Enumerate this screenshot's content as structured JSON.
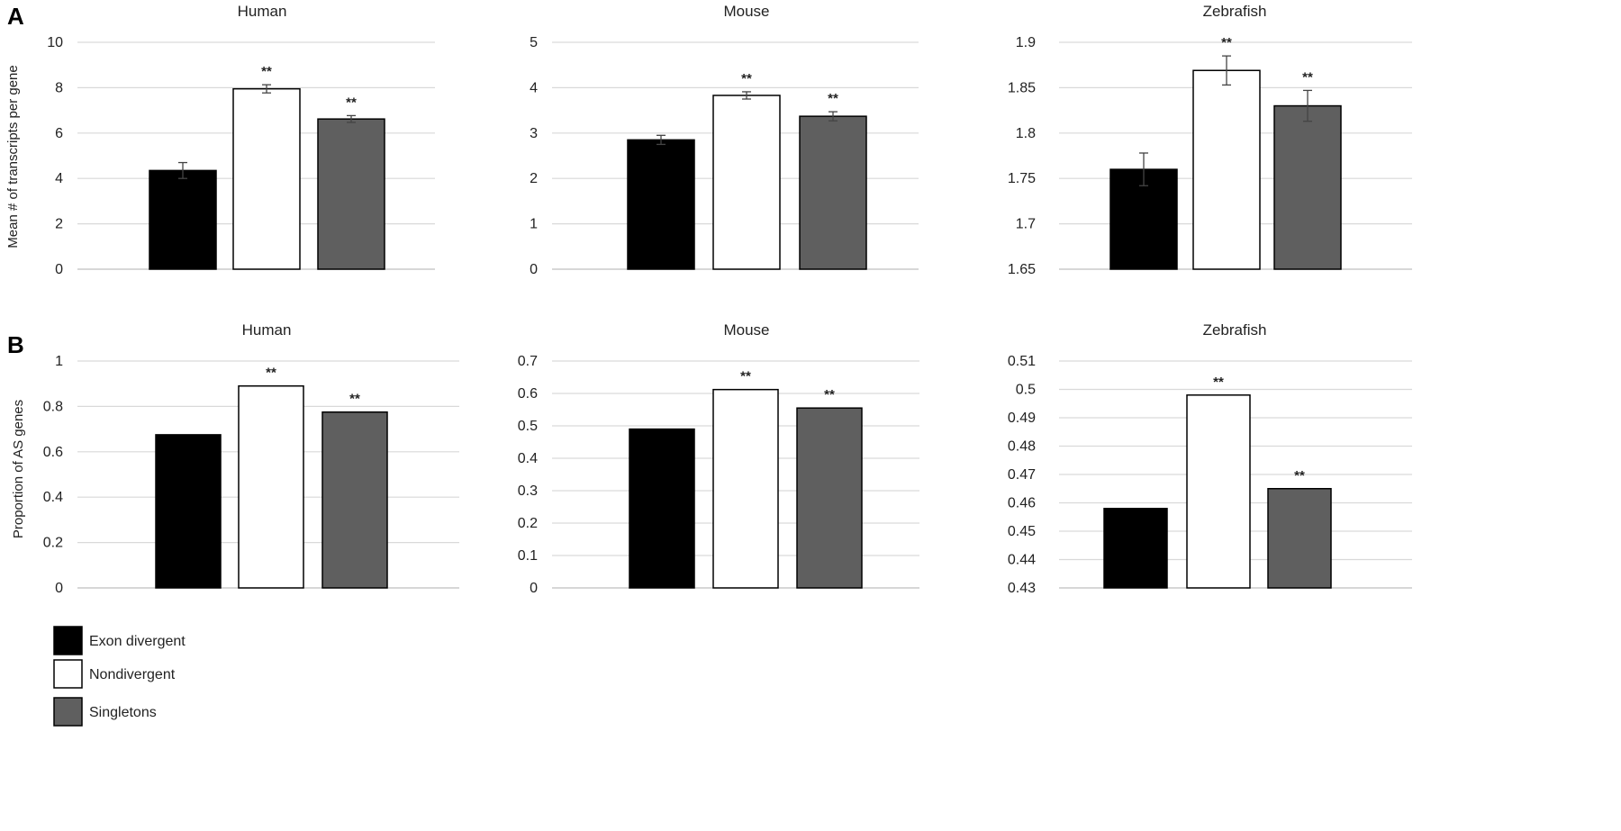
{
  "panels": {
    "A": {
      "letter": "A",
      "ylabel": "Mean # of transcripts per gene"
    },
    "B": {
      "letter": "B",
      "ylabel": "Proportion of AS genes"
    }
  },
  "legend": [
    {
      "label": "Exon divergent",
      "color": "#000000"
    },
    {
      "label": "Nondivergent",
      "color": "#ffffff"
    },
    {
      "label": "Singletons",
      "color": "#5f5f5f"
    }
  ],
  "chart_data": [
    {
      "type": "bar",
      "panel": "A",
      "title": "Human",
      "categories": [
        "Exon divergent",
        "Nondivergent",
        "Singletons"
      ],
      "values": [
        4.35,
        7.95,
        6.62
      ],
      "errors": [
        0.35,
        0.18,
        0.15
      ],
      "annotations": [
        "",
        "**",
        "**"
      ],
      "ylim": [
        0,
        10
      ],
      "yticks": [
        "0",
        "2",
        "4",
        "6",
        "8",
        "10"
      ],
      "grid": true,
      "legend": "bottom-left"
    },
    {
      "type": "bar",
      "panel": "A",
      "title": "Mouse",
      "categories": [
        "Exon divergent",
        "Nondivergent",
        "Singletons"
      ],
      "values": [
        2.85,
        3.83,
        3.37
      ],
      "errors": [
        0.1,
        0.08,
        0.1
      ],
      "annotations": [
        "",
        "**",
        "**"
      ],
      "ylim": [
        0,
        5
      ],
      "yticks": [
        "0",
        "1",
        "2",
        "3",
        "4",
        "5"
      ],
      "grid": true,
      "legend": "bottom-left"
    },
    {
      "type": "bar",
      "panel": "A",
      "title": "Zebrafish",
      "categories": [
        "Exon divergent",
        "Nondivergent",
        "Singletons"
      ],
      "values": [
        1.76,
        1.869,
        1.83
      ],
      "errors": [
        0.018,
        0.016,
        0.017
      ],
      "annotations": [
        "",
        "**",
        "**"
      ],
      "ylim": [
        1.65,
        1.9
      ],
      "yticks": [
        "1.65",
        "1.7",
        "1.75",
        "1.8",
        "1.85",
        "1.9"
      ],
      "grid": true,
      "legend": "bottom-left"
    },
    {
      "type": "bar",
      "panel": "B",
      "title": "Human",
      "categories": [
        "Exon divergent",
        "Nondivergent",
        "Singletons"
      ],
      "values": [
        0.675,
        0.89,
        0.775
      ],
      "errors": [
        0,
        0,
        0
      ],
      "annotations": [
        "",
        "**",
        "**"
      ],
      "ylim": [
        0,
        1
      ],
      "yticks": [
        "0",
        "0.2",
        "0.4",
        "0.6",
        "0.8",
        "1"
      ],
      "grid": true,
      "legend": "bottom-left"
    },
    {
      "type": "bar",
      "panel": "B",
      "title": "Mouse",
      "categories": [
        "Exon divergent",
        "Nondivergent",
        "Singletons"
      ],
      "values": [
        0.49,
        0.612,
        0.555
      ],
      "errors": [
        0,
        0,
        0
      ],
      "annotations": [
        "",
        "**",
        "**"
      ],
      "ylim": [
        0,
        0.7
      ],
      "yticks": [
        "0",
        "0.1",
        "0.2",
        "0.3",
        "0.4",
        "0.5",
        "0.6",
        "0.7"
      ],
      "grid": true,
      "legend": "bottom-left"
    },
    {
      "type": "bar",
      "panel": "B",
      "title": "Zebrafish",
      "categories": [
        "Exon divergent",
        "Nondivergent",
        "Singletons"
      ],
      "values": [
        0.458,
        0.498,
        0.465
      ],
      "errors": [
        0,
        0,
        0
      ],
      "annotations": [
        "",
        "**",
        "**"
      ],
      "ylim": [
        0.43,
        0.51
      ],
      "yticks": [
        "0.43",
        "0.44",
        "0.45",
        "0.46",
        "0.47",
        "0.48",
        "0.49",
        "0.5",
        "0.51"
      ],
      "grid": true,
      "legend": "bottom-left"
    }
  ]
}
